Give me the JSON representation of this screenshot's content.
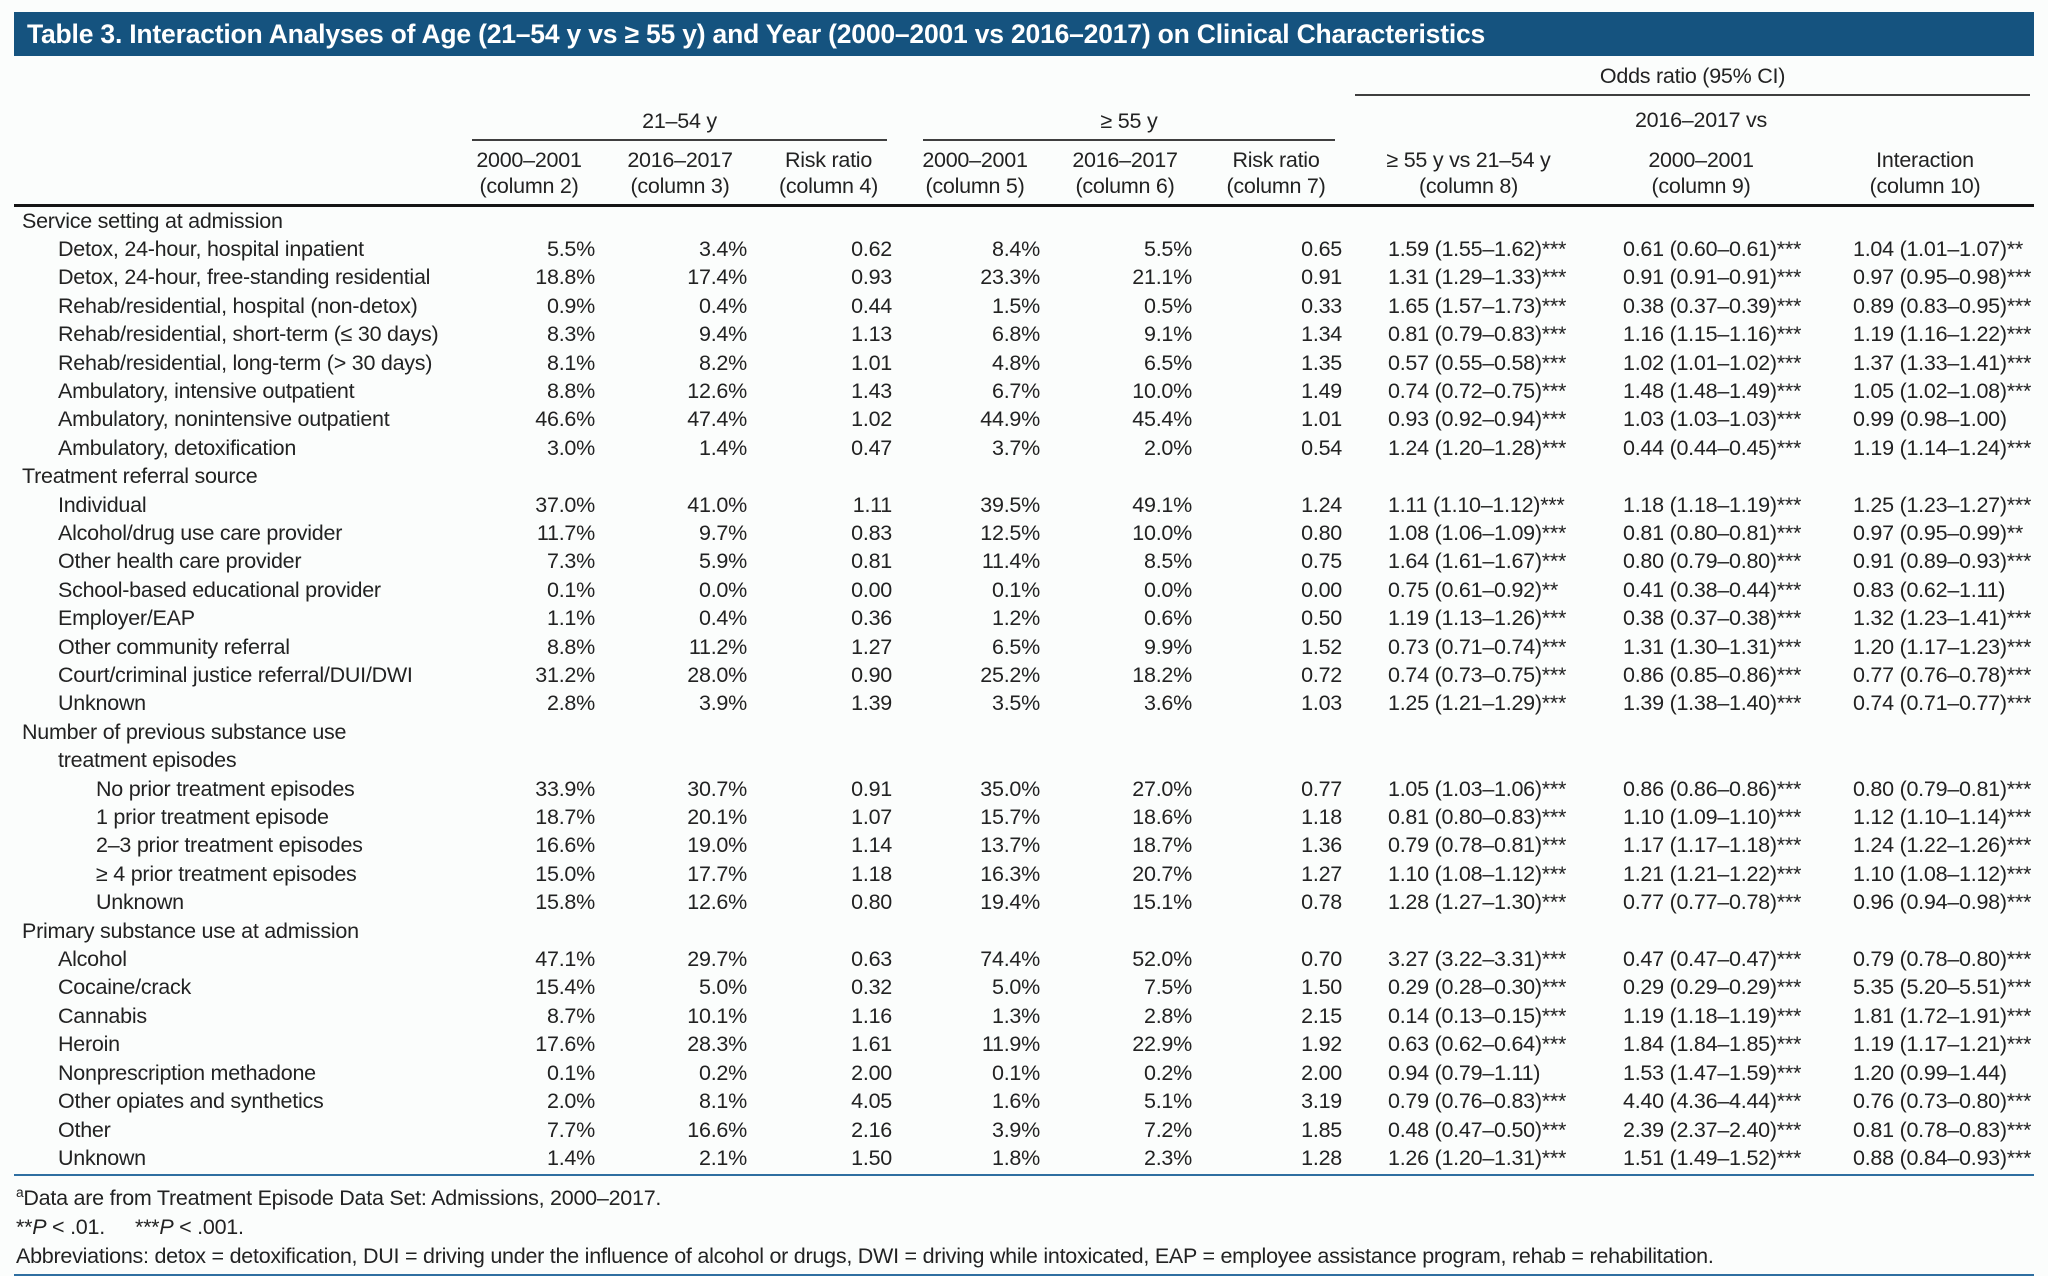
{
  "title": "Table 3. Interaction Analyses of Age (21–54 y vs ≥ 55 y) and Year (2000–2001 vs 2016–2017) on Clinical Characteristics",
  "colors": {
    "title_bar": "#15537f",
    "rule_blue": "#2f6fa1",
    "header_rule": "#3f3f3f"
  },
  "header": {
    "odds_ratio_group": "Odds ratio (95% CI)",
    "age_group_1": "21–54 y",
    "age_group_2": "≥ 55 y",
    "col9_top": "2016–2017 vs",
    "columns": [
      {
        "line1": "2000–2001",
        "line2": "(column 2)"
      },
      {
        "line1": "2016–2017",
        "line2": "(column 3)"
      },
      {
        "line1": "Risk ratio",
        "line2": "(column 4)"
      },
      {
        "line1": "2000–2001",
        "line2": "(column 5)"
      },
      {
        "line1": "2016–2017",
        "line2": "(column 6)"
      },
      {
        "line1": "Risk ratio",
        "line2": "(column 7)"
      },
      {
        "line1": "≥ 55 y vs 21–54 y",
        "line2": "(column 8)"
      },
      {
        "line1": "2000–2001",
        "line2": "(column 9)"
      },
      {
        "line1": "Interaction",
        "line2": "(column 10)"
      }
    ]
  },
  "rows": [
    {
      "t": "sec",
      "indent": 0,
      "label": "Service setting at admission"
    },
    {
      "t": "row",
      "indent": 1,
      "label": "Detox, 24-hour, hospital inpatient",
      "v": [
        "5.5%",
        "3.4%",
        "0.62",
        "8.4%",
        "5.5%",
        "0.65"
      ],
      "or": [
        "1.59 (1.55–1.62)***",
        "0.61 (0.60–0.61)***",
        "1.04 (1.01–1.07)**"
      ]
    },
    {
      "t": "row",
      "indent": 1,
      "label": "Detox, 24-hour, free-standing residential",
      "v": [
        "18.8%",
        "17.4%",
        "0.93",
        "23.3%",
        "21.1%",
        "0.91"
      ],
      "or": [
        "1.31 (1.29–1.33)***",
        "0.91 (0.91–0.91)***",
        "0.97 (0.95–0.98)***"
      ]
    },
    {
      "t": "row",
      "indent": 1,
      "label": "Rehab/residential, hospital (non-detox)",
      "v": [
        "0.9%",
        "0.4%",
        "0.44",
        "1.5%",
        "0.5%",
        "0.33"
      ],
      "or": [
        "1.65 (1.57–1.73)***",
        "0.38 (0.37–0.39)***",
        "0.89 (0.83–0.95)***"
      ]
    },
    {
      "t": "row",
      "indent": 1,
      "label": "Rehab/residential, short-term (≤ 30 days)",
      "v": [
        "8.3%",
        "9.4%",
        "1.13",
        "6.8%",
        "9.1%",
        "1.34"
      ],
      "or": [
        "0.81 (0.79–0.83)***",
        "1.16 (1.15–1.16)***",
        "1.19 (1.16–1.22)***"
      ]
    },
    {
      "t": "row",
      "indent": 1,
      "label": "Rehab/residential, long-term (> 30 days)",
      "v": [
        "8.1%",
        "8.2%",
        "1.01",
        "4.8%",
        "6.5%",
        "1.35"
      ],
      "or": [
        "0.57 (0.55–0.58)***",
        "1.02 (1.01–1.02)***",
        "1.37 (1.33–1.41)***"
      ]
    },
    {
      "t": "row",
      "indent": 1,
      "label": "Ambulatory, intensive outpatient",
      "v": [
        "8.8%",
        "12.6%",
        "1.43",
        "6.7%",
        "10.0%",
        "1.49"
      ],
      "or": [
        "0.74 (0.72–0.75)***",
        "1.48 (1.48–1.49)***",
        "1.05 (1.02–1.08)***"
      ]
    },
    {
      "t": "row",
      "indent": 1,
      "label": "Ambulatory, nonintensive outpatient",
      "v": [
        "46.6%",
        "47.4%",
        "1.02",
        "44.9%",
        "45.4%",
        "1.01"
      ],
      "or": [
        "0.93 (0.92–0.94)***",
        "1.03 (1.03–1.03)***",
        "0.99 (0.98–1.00)"
      ]
    },
    {
      "t": "row",
      "indent": 1,
      "label": "Ambulatory, detoxification",
      "v": [
        "3.0%",
        "1.4%",
        "0.47",
        "3.7%",
        "2.0%",
        "0.54"
      ],
      "or": [
        "1.24 (1.20–1.28)***",
        "0.44 (0.44–0.45)***",
        "1.19 (1.14–1.24)***"
      ]
    },
    {
      "t": "sec",
      "indent": 0,
      "label": "Treatment referral source"
    },
    {
      "t": "row",
      "indent": 1,
      "label": "Individual",
      "v": [
        "37.0%",
        "41.0%",
        "1.11",
        "39.5%",
        "49.1%",
        "1.24"
      ],
      "or": [
        "1.11 (1.10–1.12)***",
        "1.18 (1.18–1.19)***",
        "1.25 (1.23–1.27)***"
      ]
    },
    {
      "t": "row",
      "indent": 1,
      "label": "Alcohol/drug use care provider",
      "v": [
        "11.7%",
        "9.7%",
        "0.83",
        "12.5%",
        "10.0%",
        "0.80"
      ],
      "or": [
        "1.08 (1.06–1.09)***",
        "0.81 (0.80–0.81)***",
        "0.97 (0.95–0.99)**"
      ]
    },
    {
      "t": "row",
      "indent": 1,
      "label": "Other health care provider",
      "v": [
        "7.3%",
        "5.9%",
        "0.81",
        "11.4%",
        "8.5%",
        "0.75"
      ],
      "or": [
        "1.64 (1.61–1.67)***",
        "0.80 (0.79–0.80)***",
        "0.91 (0.89–0.93)***"
      ]
    },
    {
      "t": "row",
      "indent": 1,
      "label": "School-based educational provider",
      "v": [
        "0.1%",
        "0.0%",
        "0.00",
        "0.1%",
        "0.0%",
        "0.00"
      ],
      "or": [
        "0.75 (0.61–0.92)**",
        "0.41 (0.38–0.44)***",
        "0.83 (0.62–1.11)"
      ]
    },
    {
      "t": "row",
      "indent": 1,
      "label": "Employer/EAP",
      "v": [
        "1.1%",
        "0.4%",
        "0.36",
        "1.2%",
        "0.6%",
        "0.50"
      ],
      "or": [
        "1.19 (1.13–1.26)***",
        "0.38 (0.37–0.38)***",
        "1.32 (1.23–1.41)***"
      ]
    },
    {
      "t": "row",
      "indent": 1,
      "label": "Other community referral",
      "v": [
        "8.8%",
        "11.2%",
        "1.27",
        "6.5%",
        "9.9%",
        "1.52"
      ],
      "or": [
        "0.73 (0.71–0.74)***",
        "1.31 (1.30–1.31)***",
        "1.20 (1.17–1.23)***"
      ]
    },
    {
      "t": "row",
      "indent": 1,
      "label": "Court/criminal justice referral/DUI/DWI",
      "v": [
        "31.2%",
        "28.0%",
        "0.90",
        "25.2%",
        "18.2%",
        "0.72"
      ],
      "or": [
        "0.74 (0.73–0.75)***",
        "0.86 (0.85–0.86)***",
        "0.77 (0.76–0.78)***"
      ]
    },
    {
      "t": "row",
      "indent": 1,
      "label": "Unknown",
      "v": [
        "2.8%",
        "3.9%",
        "1.39",
        "3.5%",
        "3.6%",
        "1.03"
      ],
      "or": [
        "1.25 (1.21–1.29)***",
        "1.39 (1.38–1.40)***",
        "0.74 (0.71–0.77)***"
      ]
    },
    {
      "t": "sec",
      "indent": 0,
      "label": "Number of previous substance use"
    },
    {
      "t": "sec",
      "indent": 1,
      "label": "treatment episodes"
    },
    {
      "t": "row",
      "indent": 2,
      "label": "No prior treatment episodes",
      "v": [
        "33.9%",
        "30.7%",
        "0.91",
        "35.0%",
        "27.0%",
        "0.77"
      ],
      "or": [
        "1.05 (1.03–1.06)***",
        "0.86 (0.86–0.86)***",
        "0.80 (0.79–0.81)***"
      ]
    },
    {
      "t": "row",
      "indent": 2,
      "label": "1 prior treatment episode",
      "v": [
        "18.7%",
        "20.1%",
        "1.07",
        "15.7%",
        "18.6%",
        "1.18"
      ],
      "or": [
        "0.81 (0.80–0.83)***",
        "1.10 (1.09–1.10)***",
        "1.12 (1.10–1.14)***"
      ]
    },
    {
      "t": "row",
      "indent": 2,
      "label": "2–3 prior treatment episodes",
      "v": [
        "16.6%",
        "19.0%",
        "1.14",
        "13.7%",
        "18.7%",
        "1.36"
      ],
      "or": [
        "0.79 (0.78–0.81)***",
        "1.17 (1.17–1.18)***",
        "1.24 (1.22–1.26)***"
      ]
    },
    {
      "t": "row",
      "indent": 2,
      "label": "≥ 4 prior treatment episodes",
      "v": [
        "15.0%",
        "17.7%",
        "1.18",
        "16.3%",
        "20.7%",
        "1.27"
      ],
      "or": [
        "1.10 (1.08–1.12)***",
        "1.21 (1.21–1.22)***",
        "1.10 (1.08–1.12)***"
      ]
    },
    {
      "t": "row",
      "indent": 2,
      "label": "Unknown",
      "v": [
        "15.8%",
        "12.6%",
        "0.80",
        "19.4%",
        "15.1%",
        "0.78"
      ],
      "or": [
        "1.28 (1.27–1.30)***",
        "0.77 (0.77–0.78)***",
        "0.96 (0.94–0.98)***"
      ]
    },
    {
      "t": "sec",
      "indent": 0,
      "label": "Primary substance use at admission"
    },
    {
      "t": "row",
      "indent": 1,
      "label": "Alcohol",
      "v": [
        "47.1%",
        "29.7%",
        "0.63",
        "74.4%",
        "52.0%",
        "0.70"
      ],
      "or": [
        "3.27 (3.22–3.31)***",
        "0.47 (0.47–0.47)***",
        "0.79 (0.78–0.80)***"
      ]
    },
    {
      "t": "row",
      "indent": 1,
      "label": "Cocaine/crack",
      "v": [
        "15.4%",
        "5.0%",
        "0.32",
        "5.0%",
        "7.5%",
        "1.50"
      ],
      "or": [
        "0.29 (0.28–0.30)***",
        "0.29 (0.29–0.29)***",
        "5.35 (5.20–5.51)***"
      ]
    },
    {
      "t": "row",
      "indent": 1,
      "label": "Cannabis",
      "v": [
        "8.7%",
        "10.1%",
        "1.16",
        "1.3%",
        "2.8%",
        "2.15"
      ],
      "or": [
        "0.14 (0.13–0.15)***",
        "1.19 (1.18–1.19)***",
        "1.81 (1.72–1.91)***"
      ]
    },
    {
      "t": "row",
      "indent": 1,
      "label": "Heroin",
      "v": [
        "17.6%",
        "28.3%",
        "1.61",
        "11.9%",
        "22.9%",
        "1.92"
      ],
      "or": [
        "0.63 (0.62–0.64)***",
        "1.84 (1.84–1.85)***",
        "1.19 (1.17–1.21)***"
      ]
    },
    {
      "t": "row",
      "indent": 1,
      "label": "Nonprescription methadone",
      "v": [
        "0.1%",
        "0.2%",
        "2.00",
        "0.1%",
        "0.2%",
        "2.00"
      ],
      "or": [
        "0.94 (0.79–1.11)",
        "1.53 (1.47–1.59)***",
        "1.20 (0.99–1.44)"
      ]
    },
    {
      "t": "row",
      "indent": 1,
      "label": "Other opiates and synthetics",
      "v": [
        "2.0%",
        "8.1%",
        "4.05",
        "1.6%",
        "5.1%",
        "3.19"
      ],
      "or": [
        "0.79 (0.76–0.83)***",
        "4.40 (4.36–4.44)***",
        "0.76 (0.73–0.80)***"
      ]
    },
    {
      "t": "row",
      "indent": 1,
      "label": "Other",
      "v": [
        "7.7%",
        "16.6%",
        "2.16",
        "3.9%",
        "7.2%",
        "1.85"
      ],
      "or": [
        "0.48 (0.47–0.50)***",
        "2.39 (2.37–2.40)***",
        "0.81 (0.78–0.83)***"
      ]
    },
    {
      "t": "row",
      "indent": 1,
      "label": "Unknown",
      "v": [
        "1.4%",
        "2.1%",
        "1.50",
        "1.8%",
        "2.3%",
        "1.28"
      ],
      "or": [
        "1.26 (1.20–1.31)***",
        "1.51 (1.49–1.52)***",
        "0.88 (0.84–0.93)***"
      ]
    }
  ],
  "footnotes": {
    "source_sup": "a",
    "source_text": "Data are from Treatment Episode Data Set: Admissions, 2000–2017.",
    "sig": [
      {
        "stars": "**",
        "p": "P",
        "rest": " < .01."
      },
      {
        "stars": "***",
        "p": "P",
        "rest": " < .001."
      }
    ],
    "abbreviations": "Abbreviations: detox = detoxification, DUI = driving under the influence of alcohol or drugs, DWI = driving while intoxicated, EAP = employee assistance program, rehab = rehabilitation."
  }
}
